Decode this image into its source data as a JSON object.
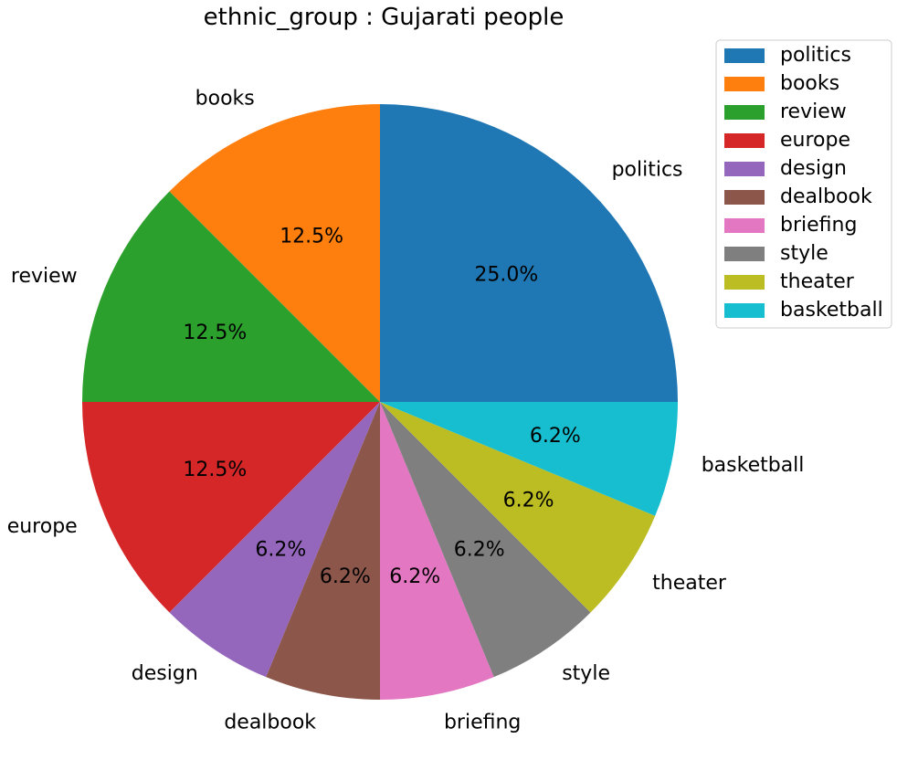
{
  "chart_data": {
    "type": "pie",
    "title": "ethnic_group : Gujarati people",
    "categories": [
      "politics",
      "books",
      "review",
      "europe",
      "design",
      "dealbook",
      "briefing",
      "style",
      "theater",
      "basketball"
    ],
    "values": [
      4,
      2,
      2,
      2,
      1,
      1,
      1,
      1,
      1,
      1
    ],
    "percent_labels": [
      "25.0%",
      "12.5%",
      "12.5%",
      "12.5%",
      "6.2%",
      "6.2%",
      "6.2%",
      "6.2%",
      "6.2%",
      "6.2%"
    ],
    "colors": [
      "#1f77b4",
      "#ff7f0e",
      "#2ca02c",
      "#d62728",
      "#9467bd",
      "#8c564b",
      "#e377c2",
      "#7f7f7f",
      "#bcbd22",
      "#17becf"
    ],
    "start_angle_deg": 0,
    "direction": "counterclockwise",
    "legend": {
      "placement": "top-right",
      "entries": [
        "politics",
        "books",
        "review",
        "europe",
        "design",
        "dealbook",
        "briefing",
        "style",
        "theater",
        "basketball"
      ]
    }
  }
}
